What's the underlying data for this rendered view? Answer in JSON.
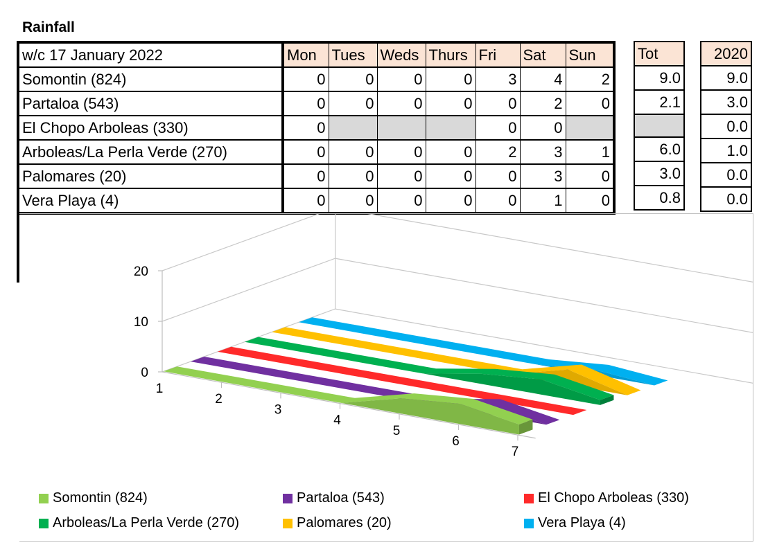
{
  "title": "Rainfall",
  "table": {
    "week_label": "w/c 17 January 2022",
    "days": [
      "Mon",
      "Tues",
      "Weds",
      "Thurs",
      "Fri",
      "Sat",
      "Sun"
    ],
    "tot_header": "Tot",
    "year_header": "2020",
    "rows": [
      {
        "name": "Somontin (824)",
        "days": [
          "0",
          "0",
          "0",
          "0",
          "3",
          "4",
          "2"
        ],
        "tot": "9.0",
        "y2020": "9.0"
      },
      {
        "name": "Partaloa (543)",
        "days": [
          "0",
          "0",
          "0",
          "0",
          "0",
          "2",
          "0"
        ],
        "tot": "2.1",
        "y2020": "3.0"
      },
      {
        "name": "El Chopo Arboleas (330)",
        "days": [
          "0",
          "",
          "",
          "",
          "0",
          "0",
          ""
        ],
        "tot": "",
        "y2020": "0.0"
      },
      {
        "name": "Arboleas/La Perla Verde (270)",
        "days": [
          "0",
          "0",
          "0",
          "0",
          "2",
          "3",
          "1"
        ],
        "tot": "6.0",
        "y2020": "1.0"
      },
      {
        "name": "Palomares (20)",
        "days": [
          "0",
          "0",
          "0",
          "0",
          "0",
          "3",
          "0"
        ],
        "tot": "3.0",
        "y2020": "0.0"
      },
      {
        "name": "Vera Playa (4)",
        "days": [
          "0",
          "0",
          "0",
          "0",
          "0",
          "1",
          "0"
        ],
        "tot": "0.8",
        "y2020": "0.0"
      }
    ]
  },
  "chart_data": {
    "type": "area",
    "x": [
      1,
      2,
      3,
      4,
      5,
      6,
      7
    ],
    "y_ticks": [
      "0",
      "10",
      "20"
    ],
    "ylim": [
      0,
      20
    ],
    "x_ticks": [
      "1",
      "2",
      "3",
      "4",
      "5",
      "6",
      "7"
    ],
    "legend_position": "bottom",
    "series": [
      {
        "name": "Somontin (824)",
        "color": "#92d050",
        "values": [
          0,
          0,
          0,
          0,
          3,
          4,
          2
        ]
      },
      {
        "name": "Partaloa (543)",
        "color": "#7030a0",
        "values": [
          0,
          0,
          0,
          0,
          0,
          2,
          0
        ]
      },
      {
        "name": "El Chopo Arboleas (330)",
        "color": "#ff2a2a",
        "values": [
          0,
          0,
          0,
          0,
          0,
          0,
          0
        ]
      },
      {
        "name": "Arboleas/La Perla Verde (270)",
        "color": "#00b050",
        "values": [
          0,
          0,
          0,
          0,
          2,
          3,
          1
        ]
      },
      {
        "name": "Palomares (20)",
        "color": "#ffc000",
        "values": [
          0,
          0,
          0,
          0,
          0,
          3,
          0
        ]
      },
      {
        "name": "Vera Playa (4)",
        "color": "#00b0f0",
        "values": [
          0,
          0,
          0,
          0,
          0,
          1,
          0
        ]
      }
    ]
  }
}
